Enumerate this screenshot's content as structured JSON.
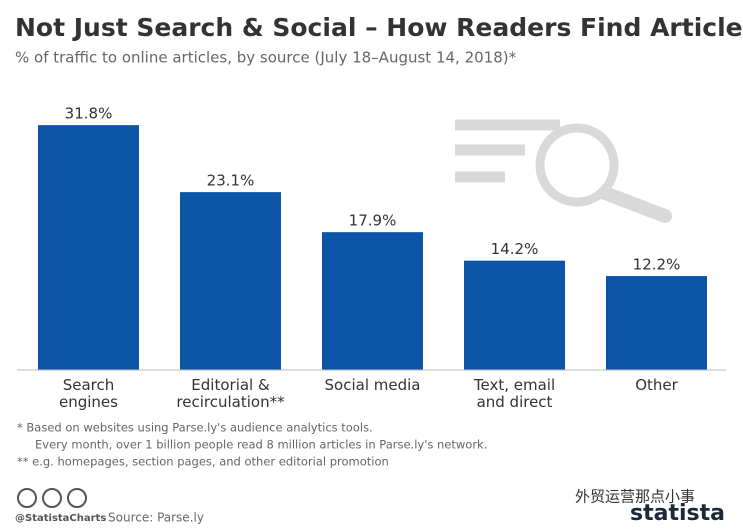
{
  "chart_data": {
    "type": "bar",
    "title": "Not Just Search & Social – How Readers Find Articles",
    "subtitle": "% of traffic to online articles, by source (July 18–August 14, 2018)*",
    "categories": [
      "Search\nengines",
      "Editorial &\nrecirculation**",
      "Social media",
      "Text, email\nand direct",
      "Other"
    ],
    "values": [
      31.8,
      23.1,
      17.9,
      14.2,
      12.2
    ],
    "value_labels": [
      "31.8%",
      "23.1%",
      "17.9%",
      "14.2%",
      "12.2%"
    ],
    "color": "#0c55a6",
    "ylim": [
      0,
      35
    ],
    "footnotes": [
      "*   Based on websites using Parse.ly's audience analytics tools.",
      "Every month, over 1 billion people read 8 million articles in Parse.ly's network.",
      "** e.g. homepages, section pages, and other editorial promotion"
    ],
    "handle": "@StatistaCharts",
    "source": "Source: Parse.ly",
    "brand": "statista",
    "watermark": "外贸运营那点小事"
  }
}
